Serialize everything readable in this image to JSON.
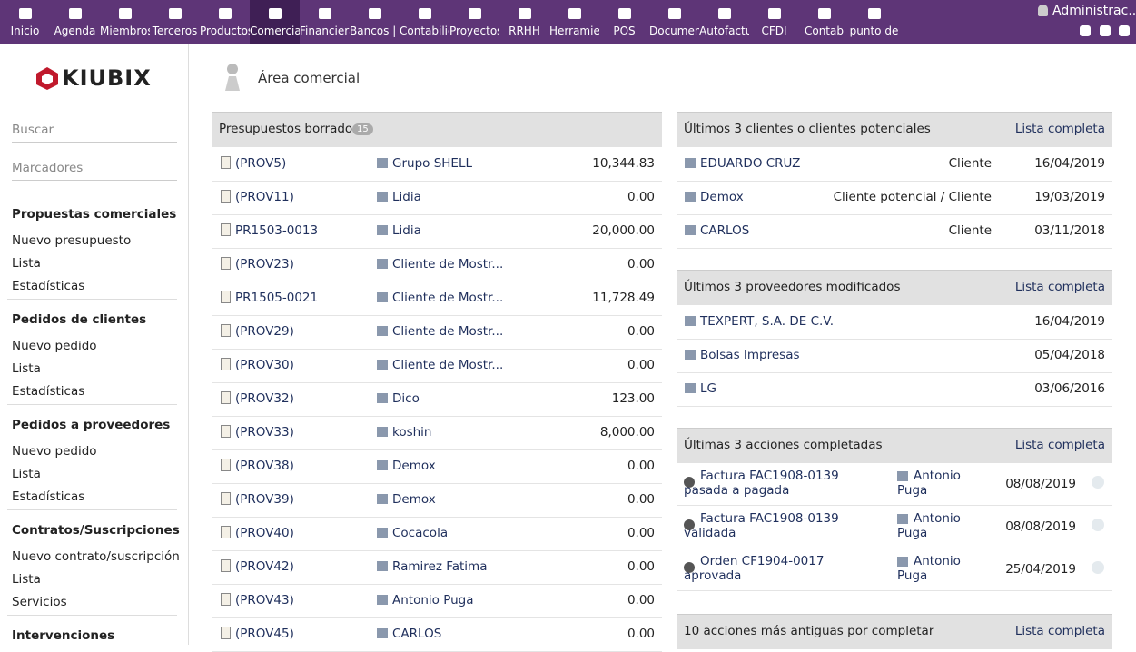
{
  "nav": {
    "items": [
      "Inicio",
      "Agenda",
      "Miembros",
      "Terceros",
      "Productos",
      "Comercia",
      "Financiera",
      "Bancos | C",
      "Contabilid",
      "Proyectos",
      "RRHH",
      "Herramien",
      "POS",
      "Documen",
      "Autofactu",
      "CFDI",
      "Contab",
      "punto de"
    ],
    "user": "Administrac..."
  },
  "sidebar": {
    "logo": "KIUBIX",
    "search": "Buscar",
    "bookmarks": "Marcadores",
    "sections": [
      {
        "title": "Propuestas comerciales",
        "links": [
          "Nuevo presupuesto",
          "Lista",
          "Estadísticas"
        ]
      },
      {
        "title": "Pedidos de clientes",
        "links": [
          "Nuevo pedido",
          "Lista",
          "Estadísticas"
        ]
      },
      {
        "title": "Pedidos a proveedores",
        "links": [
          "Nuevo pedido",
          "Lista",
          "Estadísticas"
        ]
      },
      {
        "title": "Contratos/Suscripciones",
        "links": [
          "Nuevo contrato/suscripción",
          "Lista",
          "Servicios"
        ]
      },
      {
        "title": "Intervenciones",
        "links": []
      }
    ]
  },
  "page": {
    "title": "Área comercial"
  },
  "drafts": {
    "title": "Presupuestos borrador",
    "count": "15",
    "rows": [
      [
        "(PROV5)",
        "Grupo SHELL",
        "10,344.83"
      ],
      [
        "(PROV11)",
        "Lidia",
        "0.00"
      ],
      [
        "PR1503-0013",
        "Lidia",
        "20,000.00"
      ],
      [
        "(PROV23)",
        "Cliente de Mostr...",
        "0.00"
      ],
      [
        "PR1505-0021",
        "Cliente de Mostr...",
        "11,728.49"
      ],
      [
        "(PROV29)",
        "Cliente de Mostr...",
        "0.00"
      ],
      [
        "(PROV30)",
        "Cliente de Mostr...",
        "0.00"
      ],
      [
        "(PROV32)",
        "Dico",
        "123.00"
      ],
      [
        "(PROV33)",
        "koshin",
        "8,000.00"
      ],
      [
        "(PROV38)",
        "Demox",
        "0.00"
      ],
      [
        "(PROV39)",
        "Demox",
        "0.00"
      ],
      [
        "(PROV40)",
        "Cocacola",
        "0.00"
      ],
      [
        "(PROV42)",
        "Ramirez Fatima",
        "0.00"
      ],
      [
        "(PROV43)",
        "Antonio Puga",
        "0.00"
      ],
      [
        "(PROV45)",
        "CARLOS",
        "0.00"
      ]
    ]
  },
  "clients": {
    "title": "Últimos 3 clientes o clientes potenciales",
    "link": "Lista completa",
    "rows": [
      [
        "EDUARDO CRUZ",
        "Cliente",
        "16/04/2019"
      ],
      [
        "Demox",
        "Cliente potencial / Cliente",
        "19/03/2019"
      ],
      [
        "CARLOS",
        "Cliente",
        "03/11/2018"
      ]
    ]
  },
  "suppliers": {
    "title": "Últimos 3 proveedores modificados",
    "link": "Lista completa",
    "rows": [
      [
        "TEXPERT, S.A. DE C.V.",
        "16/04/2019"
      ],
      [
        "Bolsas Impresas",
        "05/04/2018"
      ],
      [
        "LG",
        "03/06/2016"
      ]
    ]
  },
  "actions": {
    "title": "Últimas 3 acciones completadas",
    "link": "Lista completa",
    "rows": [
      [
        "Factura FAC1908-0139 pasada a pagada",
        "Antonio Puga",
        "08/08/2019"
      ],
      [
        "Factura FAC1908-0139 validada",
        "Antonio Puga",
        "08/08/2019"
      ],
      [
        "Orden CF1904-0017 aprovada",
        "Antonio Puga",
        "25/04/2019"
      ]
    ]
  },
  "todo": {
    "title": "10 acciones más antiguas por completar",
    "link": "Lista completa"
  }
}
